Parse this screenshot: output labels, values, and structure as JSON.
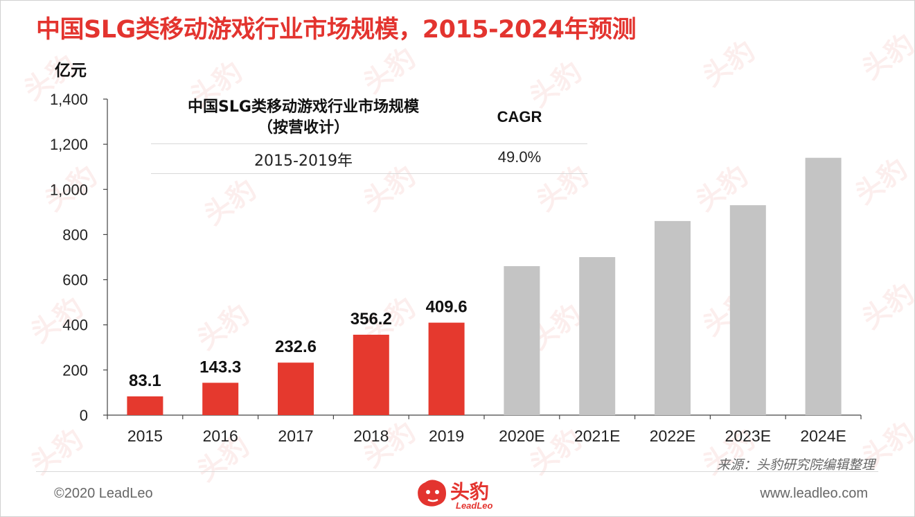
{
  "title": "中国SLG类移动游戏行业市场规模，2015-2024年预测",
  "unit": "亿元",
  "table": {
    "header_metric": "中国SLG类移动游戏行业市场规模\n（按营收计）",
    "header_cagr": "CAGR",
    "period": "2015-2019年",
    "cagr_value": "49.0%"
  },
  "source": "来源：头豹研究院编辑整理",
  "footer": {
    "copyright": "©2020 LeadLeo",
    "website": "www.leadleo.com",
    "logo_cn": "头豹",
    "logo_en": "LeadLeo"
  },
  "watermark_text": "头豹",
  "colors": {
    "actual": "#e5392e",
    "forecast": "#c4c4c4",
    "title": "#e3342f"
  },
  "chart_data": {
    "type": "bar",
    "categories": [
      "2015",
      "2016",
      "2017",
      "2018",
      "2019",
      "2020E",
      "2021E",
      "2022E",
      "2023E",
      "2024E"
    ],
    "values": [
      83.1,
      143.3,
      232.6,
      356.2,
      409.6,
      660,
      700,
      860,
      930,
      1140
    ],
    "value_labels": [
      "83.1",
      "143.3",
      "232.6",
      "356.2",
      "409.6",
      "",
      "",
      "",
      "",
      ""
    ],
    "forecast": [
      false,
      false,
      false,
      false,
      false,
      true,
      true,
      true,
      true,
      true
    ],
    "ylim": [
      0,
      1400
    ],
    "yticks": [
      0,
      200,
      400,
      600,
      800,
      1000,
      1200,
      1400
    ],
    "ytick_labels": [
      "0",
      "200",
      "400",
      "600",
      "800",
      "1,000",
      "1,200",
      "1,400"
    ],
    "ylabel": "亿元",
    "grid": false
  }
}
